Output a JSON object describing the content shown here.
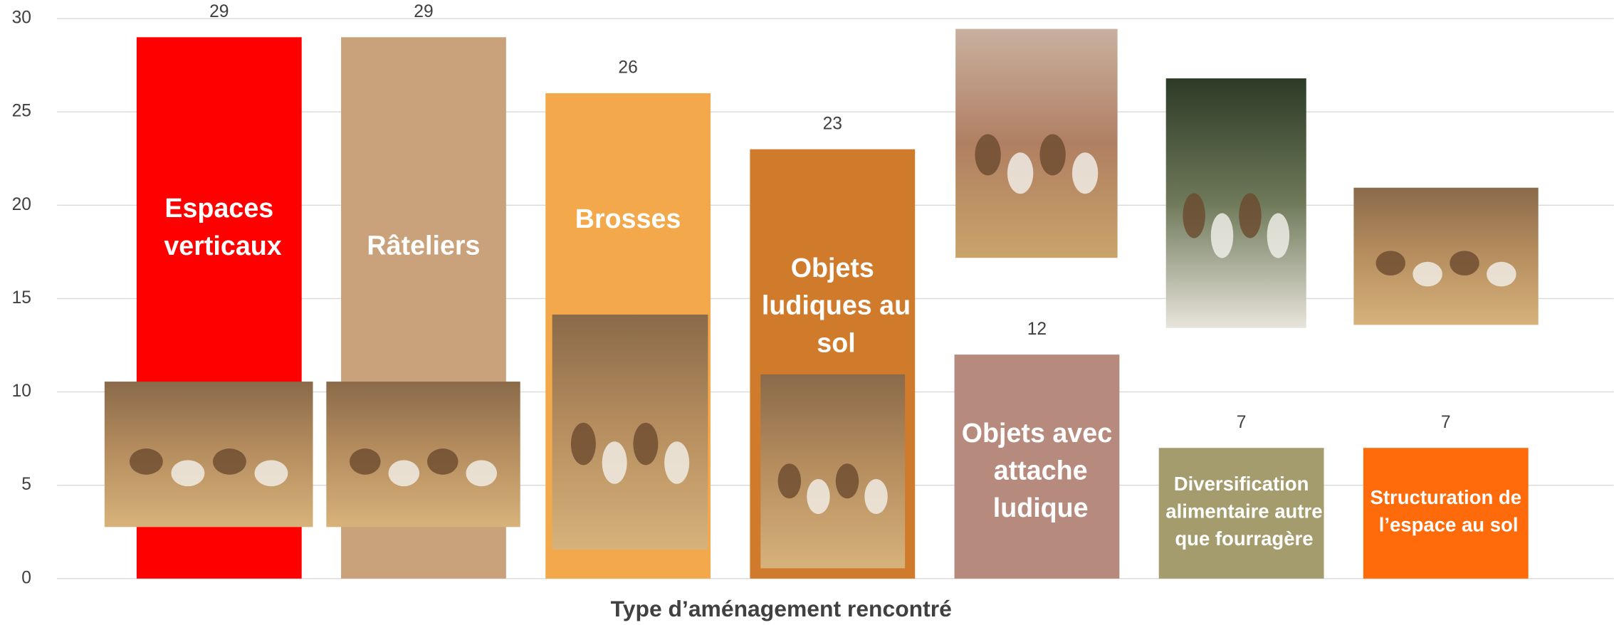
{
  "chart_data": {
    "type": "bar",
    "x_label": "Type d’aménagement rencontré",
    "categories": [
      "Espaces verticaux",
      "Râteliers",
      "Brosses",
      "Objets ludiques au sol",
      "Objets avec attache ludique",
      "Diversification alimentaire autre que fourragère",
      "Structuration de l’espace au sol"
    ],
    "values": [
      29,
      29,
      26,
      23,
      12,
      7,
      7
    ],
    "colors": [
      "#ff0000",
      "#c9a27c",
      "#f3a94b",
      "#d07a2c",
      "#b78a7e",
      "#a59c6d",
      "#ff6a0a"
    ],
    "ylim": [
      0,
      30
    ],
    "yticks": [
      0,
      5,
      10,
      15,
      20,
      25,
      30
    ],
    "grid": true
  }
}
